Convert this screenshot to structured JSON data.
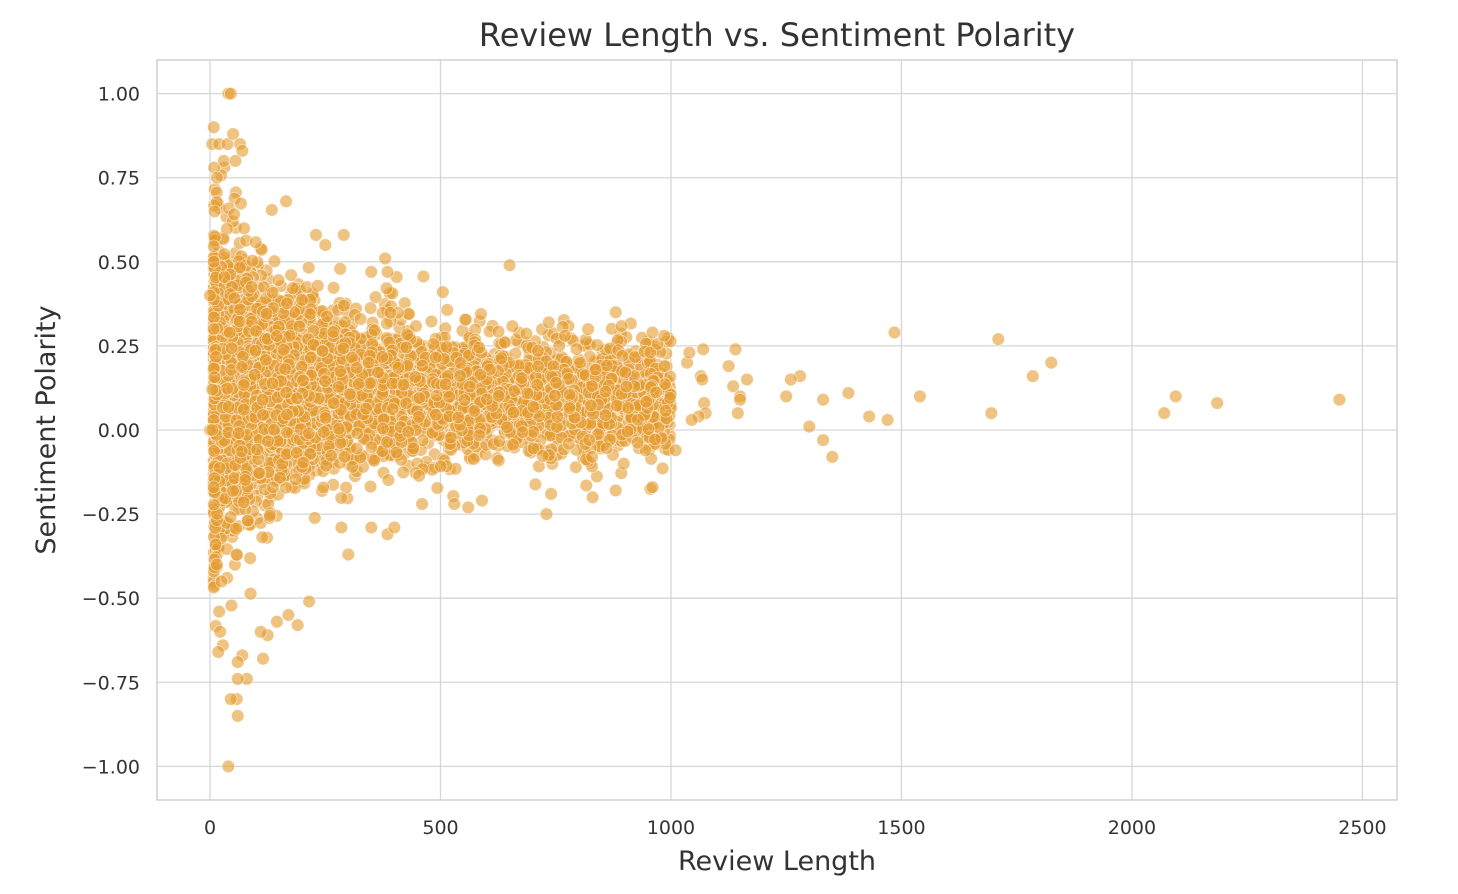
{
  "chart_data": {
    "type": "scatter",
    "title": "Review Length vs. Sentiment Polarity",
    "xlabel": "Review Length",
    "ylabel": "Sentiment Polarity",
    "xlim": [
      -115,
      2575
    ],
    "ylim": [
      -1.1,
      1.1
    ],
    "x_ticks": [
      0,
      500,
      1000,
      1500,
      2000,
      2500
    ],
    "x_tick_labels": [
      "0",
      "500",
      "1000",
      "1500",
      "2000",
      "2500"
    ],
    "y_ticks": [
      1.0,
      0.75,
      0.5,
      0.25,
      0.0,
      -0.25,
      -0.5,
      -0.75,
      -1.0
    ],
    "y_tick_labels": [
      "1.00",
      "0.75",
      "0.50",
      "0.25",
      "0.00",
      "−0.25",
      "−0.50",
      "−0.75",
      "−1.00"
    ],
    "grid": true,
    "legend": "none",
    "marker_color": "#e59b2f",
    "marker_alpha": 0.6,
    "dense_cluster_note": "thousands of overlapping points between x≈0 and x≈1000",
    "points": [
      [
        1485,
        0.29
      ],
      [
        1710,
        0.27
      ],
      [
        1825,
        0.2
      ],
      [
        1785,
        0.16
      ],
      [
        1540,
        0.1
      ],
      [
        1385,
        0.11
      ],
      [
        1430,
        0.04
      ],
      [
        1470,
        0.03
      ],
      [
        1695,
        0.05
      ],
      [
        2070,
        0.05
      ],
      [
        2095,
        0.1
      ],
      [
        2185,
        0.08
      ],
      [
        2450,
        0.09
      ],
      [
        1280,
        0.16
      ],
      [
        1260,
        0.15
      ],
      [
        1250,
        0.1
      ],
      [
        1330,
        0.09
      ],
      [
        1300,
        0.01
      ],
      [
        1330,
        -0.03
      ],
      [
        1350,
        -0.08
      ],
      [
        1140,
        0.24
      ],
      [
        1165,
        0.15
      ],
      [
        1125,
        0.19
      ],
      [
        1135,
        0.13
      ],
      [
        1150,
        0.1
      ],
      [
        1150,
        0.09
      ],
      [
        1145,
        0.05
      ],
      [
        1070,
        0.24
      ],
      [
        1065,
        0.16
      ],
      [
        1068,
        0.15
      ],
      [
        1072,
        0.08
      ],
      [
        1075,
        0.05
      ],
      [
        1060,
        0.04
      ],
      [
        1045,
        0.03
      ],
      [
        1035,
        0.2
      ],
      [
        1040,
        0.23
      ],
      [
        1010,
        -0.06
      ],
      [
        650,
        0.49
      ],
      [
        880,
        0.35
      ],
      [
        730,
        -0.25
      ],
      [
        740,
        -0.19
      ],
      [
        590,
        -0.21
      ],
      [
        830,
        -0.2
      ],
      [
        880,
        -0.18
      ],
      [
        960,
        -0.17
      ],
      [
        530,
        -0.22
      ],
      [
        560,
        -0.23
      ],
      [
        460,
        -0.22
      ],
      [
        385,
        -0.31
      ],
      [
        400,
        -0.29
      ],
      [
        350,
        -0.29
      ],
      [
        300,
        -0.37
      ],
      [
        285,
        -0.29
      ],
      [
        190,
        -0.58
      ],
      [
        215,
        -0.51
      ],
      [
        170,
        -0.55
      ],
      [
        145,
        -0.57
      ],
      [
        125,
        -0.61
      ],
      [
        110,
        -0.6
      ],
      [
        115,
        -0.68
      ],
      [
        80,
        -0.74
      ],
      [
        70,
        -0.67
      ],
      [
        60,
        -0.69
      ],
      [
        60,
        -0.74
      ],
      [
        58,
        -0.8
      ],
      [
        45,
        -0.8
      ],
      [
        60,
        -0.85
      ],
      [
        40,
        -1.0
      ],
      [
        28,
        -0.64
      ],
      [
        22,
        -0.6
      ],
      [
        20,
        -0.54
      ],
      [
        18,
        -0.66
      ],
      [
        25,
        -0.45
      ],
      [
        15,
        -0.4
      ],
      [
        12,
        -0.34
      ],
      [
        8,
        -0.17
      ],
      [
        0,
        0.0
      ],
      [
        5,
        0.0
      ],
      [
        5,
        0.12
      ],
      [
        0,
        0.4
      ],
      [
        8,
        0.5
      ],
      [
        10,
        0.65
      ],
      [
        15,
        0.75
      ],
      [
        5,
        0.85
      ],
      [
        8,
        0.9
      ],
      [
        20,
        0.85
      ],
      [
        30,
        0.8
      ],
      [
        40,
        1.0
      ],
      [
        45,
        1.0
      ],
      [
        38,
        0.85
      ],
      [
        50,
        0.88
      ],
      [
        65,
        0.85
      ],
      [
        70,
        0.83
      ],
      [
        55,
        0.8
      ],
      [
        290,
        0.58
      ],
      [
        250,
        0.55
      ],
      [
        230,
        0.58
      ],
      [
        165,
        0.68
      ],
      [
        380,
        0.51
      ],
      [
        385,
        0.47
      ],
      [
        350,
        0.47
      ],
      [
        505,
        0.41
      ],
      [
        735,
        0.32
      ],
      [
        960,
        0.29
      ],
      [
        985,
        0.28
      ],
      [
        770,
        0.28
      ]
    ]
  }
}
